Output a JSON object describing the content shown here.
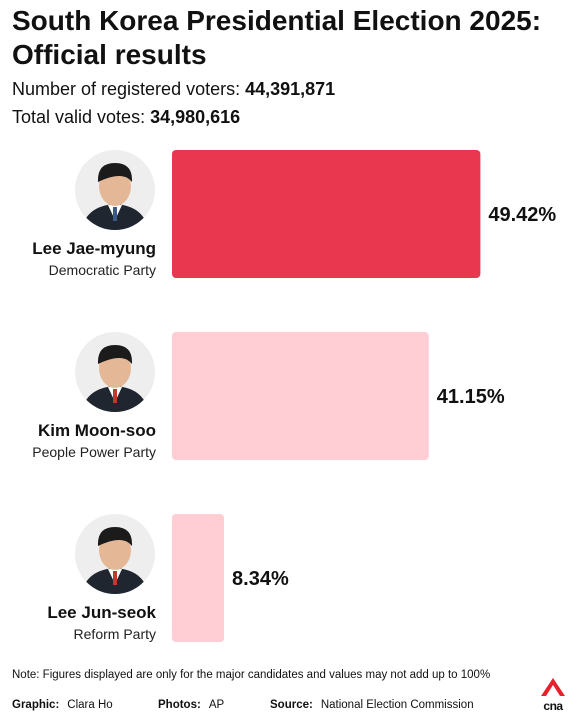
{
  "header": {
    "title_line1": "South Korea Presidential Election 2025:",
    "title_line2": "Official results",
    "registered_label": "Number of registered voters: ",
    "registered_value": "44,391,871",
    "valid_label": "Total valid votes: ",
    "valid_value": "34,980,616"
  },
  "chart_data": {
    "type": "bar",
    "orientation": "horizontal",
    "categories": [
      "Lee Jae-myung",
      "Kim Moon-soo",
      "Lee Jun-seok"
    ],
    "parties": [
      "Democratic Party",
      "People Power Party",
      "Reform Party"
    ],
    "values": [
      49.42,
      41.15,
      8.34
    ],
    "value_labels": [
      "49.42%",
      "41.15%",
      "8.34%"
    ],
    "colors": [
      "#e8374f",
      "#ffcdd3",
      "#ffcdd3"
    ],
    "xlim": [
      0,
      50
    ],
    "grid": false,
    "legend": "none"
  },
  "footer": {
    "note": "Note: Figures displayed are only for the major candidates and values may not add up to 100%",
    "graphic_label": "Graphic:",
    "graphic_value": "Clara Ho",
    "photos_label": "Photos:",
    "photos_value": "AP",
    "source_label": "Source:",
    "source_value": "National Election Commission",
    "logo_text": "cna",
    "logo_color": "#e8202e"
  }
}
